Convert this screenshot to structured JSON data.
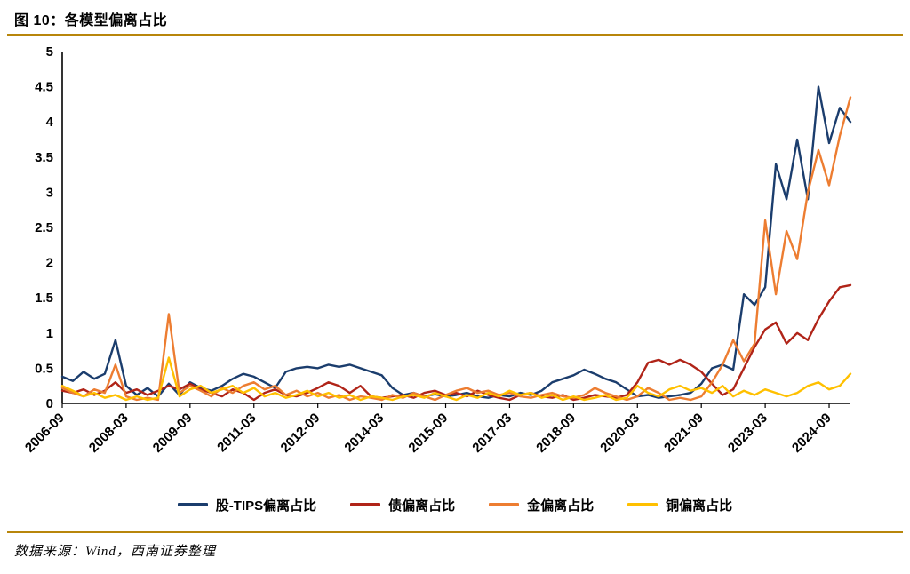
{
  "page": {
    "title": "图 10：各模型偏离占比",
    "source": "数据来源：Wind，西南证券整理",
    "accent_rule_color": "#b8860b",
    "background_color": "#ffffff",
    "text_color": "#000000"
  },
  "chart_data": {
    "type": "line",
    "title": "图 10：各模型偏离占比",
    "xlabel": "",
    "ylabel": "",
    "ylim": [
      0,
      5
    ],
    "y_ticks": [
      0,
      0.5,
      1,
      1.5,
      2,
      2.5,
      3,
      3.5,
      4,
      4.5,
      5
    ],
    "grid": false,
    "legend_position": "bottom",
    "x_tick_step": 6,
    "x_tick_labels": [
      "2006-09",
      "2008-03",
      "2009-09",
      "2011-03",
      "2012-09",
      "2014-03",
      "2015-09",
      "2017-03",
      "2018-09",
      "2020-03",
      "2021-09",
      "2023-03",
      "2024-09"
    ],
    "x": [
      "2006-09",
      "2006-12",
      "2007-03",
      "2007-06",
      "2007-09",
      "2007-12",
      "2008-03",
      "2008-06",
      "2008-09",
      "2008-12",
      "2009-03",
      "2009-06",
      "2009-09",
      "2009-12",
      "2010-03",
      "2010-06",
      "2010-09",
      "2010-12",
      "2011-03",
      "2011-06",
      "2011-09",
      "2011-12",
      "2012-03",
      "2012-06",
      "2012-09",
      "2012-12",
      "2013-03",
      "2013-06",
      "2013-09",
      "2013-12",
      "2014-03",
      "2014-06",
      "2014-09",
      "2014-12",
      "2015-03",
      "2015-06",
      "2015-09",
      "2015-12",
      "2016-03",
      "2016-06",
      "2016-09",
      "2016-12",
      "2017-03",
      "2017-06",
      "2017-09",
      "2017-12",
      "2018-03",
      "2018-06",
      "2018-09",
      "2018-12",
      "2019-03",
      "2019-06",
      "2019-09",
      "2019-12",
      "2020-03",
      "2020-06",
      "2020-09",
      "2020-12",
      "2021-03",
      "2021-06",
      "2021-09",
      "2021-12",
      "2022-03",
      "2022-06",
      "2022-09",
      "2022-12",
      "2023-03",
      "2023-06",
      "2023-09",
      "2023-12",
      "2024-03",
      "2024-06",
      "2024-09",
      "2024-12",
      "2025-03"
    ],
    "series": [
      {
        "name": "股-TIPS偏离占比",
        "color": "#1b3d6d",
        "values": [
          0.38,
          0.32,
          0.45,
          0.35,
          0.42,
          0.9,
          0.25,
          0.12,
          0.22,
          0.1,
          0.28,
          0.12,
          0.3,
          0.22,
          0.18,
          0.25,
          0.35,
          0.42,
          0.38,
          0.3,
          0.22,
          0.45,
          0.5,
          0.52,
          0.5,
          0.55,
          0.52,
          0.55,
          0.5,
          0.45,
          0.4,
          0.22,
          0.12,
          0.15,
          0.1,
          0.13,
          0.1,
          0.12,
          0.15,
          0.1,
          0.08,
          0.12,
          0.1,
          0.15,
          0.12,
          0.18,
          0.3,
          0.35,
          0.4,
          0.48,
          0.42,
          0.35,
          0.3,
          0.2,
          0.1,
          0.12,
          0.08,
          0.1,
          0.12,
          0.15,
          0.28,
          0.5,
          0.55,
          0.48,
          1.55,
          1.4,
          1.65,
          3.4,
          2.9,
          3.75,
          2.9,
          4.5,
          3.7,
          4.2,
          4.0
        ]
      },
      {
        "name": "债偏离占比",
        "color": "#b02418",
        "values": [
          0.18,
          0.15,
          0.2,
          0.12,
          0.18,
          0.3,
          0.15,
          0.2,
          0.12,
          0.18,
          0.25,
          0.2,
          0.28,
          0.2,
          0.15,
          0.1,
          0.2,
          0.15,
          0.05,
          0.15,
          0.2,
          0.12,
          0.1,
          0.15,
          0.22,
          0.3,
          0.25,
          0.15,
          0.25,
          0.1,
          0.08,
          0.1,
          0.12,
          0.08,
          0.15,
          0.18,
          0.12,
          0.15,
          0.1,
          0.18,
          0.12,
          0.08,
          0.05,
          0.12,
          0.15,
          0.1,
          0.08,
          0.12,
          0.05,
          0.08,
          0.12,
          0.1,
          0.08,
          0.12,
          0.3,
          0.58,
          0.62,
          0.55,
          0.62,
          0.55,
          0.45,
          0.28,
          0.12,
          0.2,
          0.5,
          0.8,
          1.05,
          1.15,
          0.85,
          1.0,
          0.9,
          1.2,
          1.45,
          1.65,
          1.68
        ]
      },
      {
        "name": "金偏离占比",
        "color": "#ed7d31",
        "values": [
          0.22,
          0.15,
          0.1,
          0.2,
          0.15,
          0.55,
          0.1,
          0.05,
          0.08,
          0.05,
          1.27,
          0.15,
          0.25,
          0.18,
          0.1,
          0.22,
          0.15,
          0.25,
          0.3,
          0.2,
          0.25,
          0.12,
          0.18,
          0.1,
          0.15,
          0.08,
          0.12,
          0.05,
          0.1,
          0.08,
          0.05,
          0.12,
          0.08,
          0.15,
          0.1,
          0.05,
          0.12,
          0.18,
          0.22,
          0.15,
          0.18,
          0.12,
          0.15,
          0.1,
          0.08,
          0.12,
          0.15,
          0.1,
          0.08,
          0.12,
          0.22,
          0.15,
          0.1,
          0.05,
          0.1,
          0.22,
          0.15,
          0.05,
          0.08,
          0.05,
          0.1,
          0.3,
          0.55,
          0.9,
          0.6,
          0.85,
          2.6,
          1.55,
          2.45,
          2.05,
          3.0,
          3.6,
          3.1,
          3.8,
          4.35
        ]
      },
      {
        "name": "铜偏离占比",
        "color": "#ffc000",
        "values": [
          0.25,
          0.18,
          0.1,
          0.15,
          0.08,
          0.12,
          0.05,
          0.1,
          0.05,
          0.08,
          0.65,
          0.1,
          0.2,
          0.25,
          0.15,
          0.2,
          0.25,
          0.15,
          0.22,
          0.1,
          0.15,
          0.08,
          0.12,
          0.18,
          0.1,
          0.15,
          0.08,
          0.12,
          0.05,
          0.1,
          0.08,
          0.05,
          0.1,
          0.12,
          0.08,
          0.15,
          0.1,
          0.05,
          0.12,
          0.08,
          0.15,
          0.1,
          0.18,
          0.12,
          0.15,
          0.08,
          0.12,
          0.05,
          0.1,
          0.05,
          0.08,
          0.12,
          0.05,
          0.08,
          0.25,
          0.15,
          0.1,
          0.2,
          0.25,
          0.18,
          0.22,
          0.15,
          0.25,
          0.1,
          0.18,
          0.12,
          0.2,
          0.15,
          0.1,
          0.15,
          0.25,
          0.3,
          0.2,
          0.25,
          0.42
        ]
      }
    ]
  }
}
